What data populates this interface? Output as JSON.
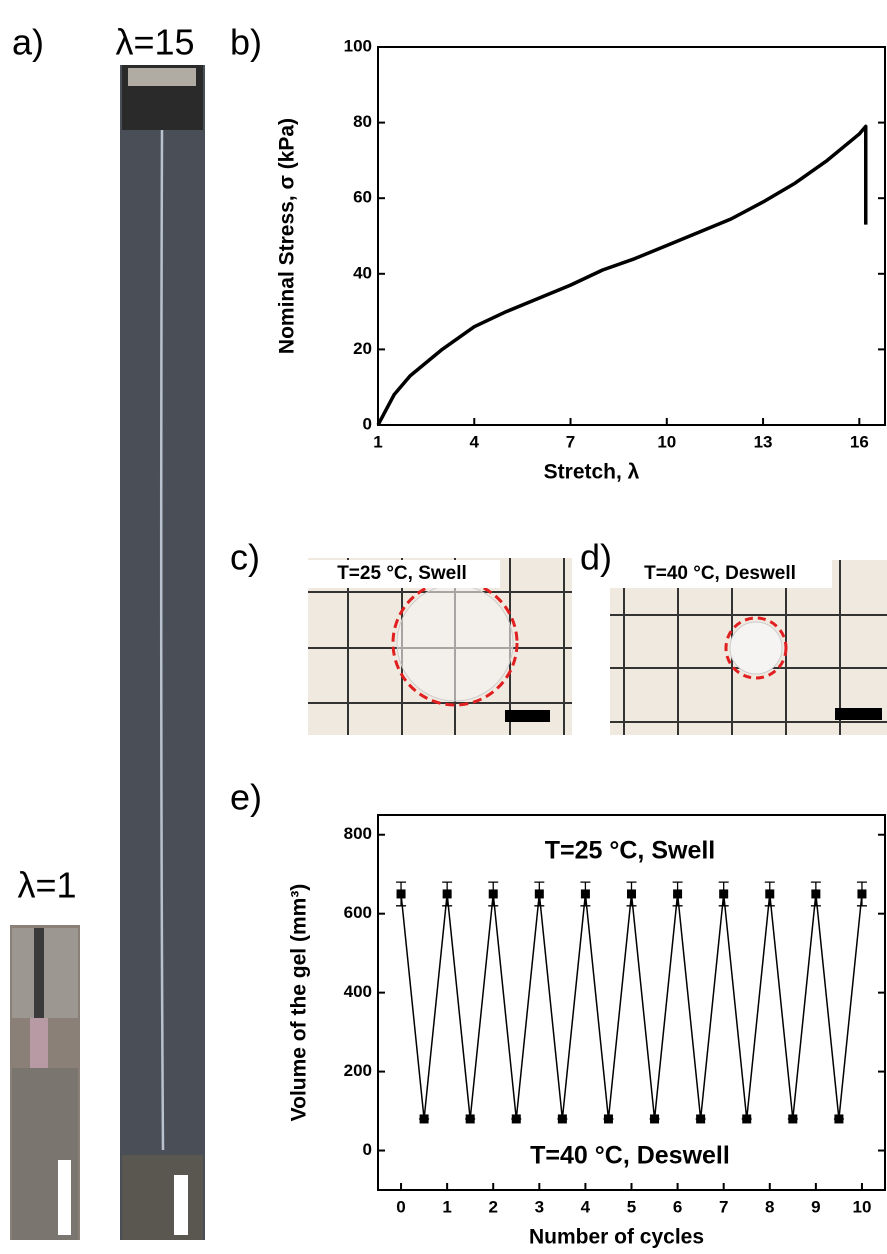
{
  "figure": {
    "panel_labels": [
      "a)",
      "b)",
      "c)",
      "d)",
      "e)"
    ],
    "photo_labels": [
      "λ=15",
      "λ=1",
      "T=25 °C, Swell",
      "T=40 °C, Deswell"
    ]
  },
  "chart_data": [
    {
      "type": "line",
      "xlabel": "Stretch, λ",
      "ylabel": "Nominal Stress, σ (kPa)",
      "xlim": [
        1,
        16.8
      ],
      "ylim": [
        0,
        100
      ],
      "xticks": [
        1,
        4,
        7,
        10,
        13,
        16
      ],
      "yticks": [
        0,
        20,
        40,
        60,
        80,
        100
      ],
      "series": [
        {
          "color": "#000000",
          "x": [
            1,
            1.5,
            2,
            3,
            4,
            5,
            6,
            7,
            8,
            9,
            10,
            11,
            12,
            13,
            14,
            15,
            16,
            16.2,
            16.2
          ],
          "values": [
            0,
            8,
            13,
            20,
            26,
            30,
            33.5,
            37,
            41,
            44,
            47.5,
            51,
            54.5,
            59,
            64,
            70,
            77,
            79,
            53
          ]
        }
      ]
    },
    {
      "type": "line",
      "xlabel": "Number of cycles",
      "ylabel": "Volume of the gel (mm³)",
      "xlim": [
        -0.5,
        10.5
      ],
      "ylim": [
        -100,
        850
      ],
      "xticks": [
        0,
        1,
        2,
        3,
        4,
        5,
        6,
        7,
        8,
        9,
        10
      ],
      "yticks": [
        0,
        200,
        400,
        600,
        800
      ],
      "annotations": [
        "T=25 °C, Swell",
        "T=40 °C, Deswell"
      ],
      "series": [
        {
          "color": "#000000",
          "marker": "square",
          "x": [
            0,
            0.5,
            1,
            1.5,
            2,
            2.5,
            3,
            3.5,
            4,
            4.5,
            5,
            5.5,
            6,
            6.5,
            7,
            7.5,
            8,
            8.5,
            9,
            9.5,
            10
          ],
          "values": [
            650,
            80,
            650,
            80,
            650,
            80,
            650,
            80,
            650,
            80,
            650,
            80,
            650,
            80,
            650,
            80,
            650,
            80,
            650,
            80,
            650
          ],
          "errors": [
            30,
            0,
            30,
            0,
            30,
            0,
            30,
            0,
            30,
            0,
            30,
            0,
            30,
            0,
            30,
            0,
            30,
            0,
            30,
            0,
            30
          ]
        }
      ]
    }
  ]
}
